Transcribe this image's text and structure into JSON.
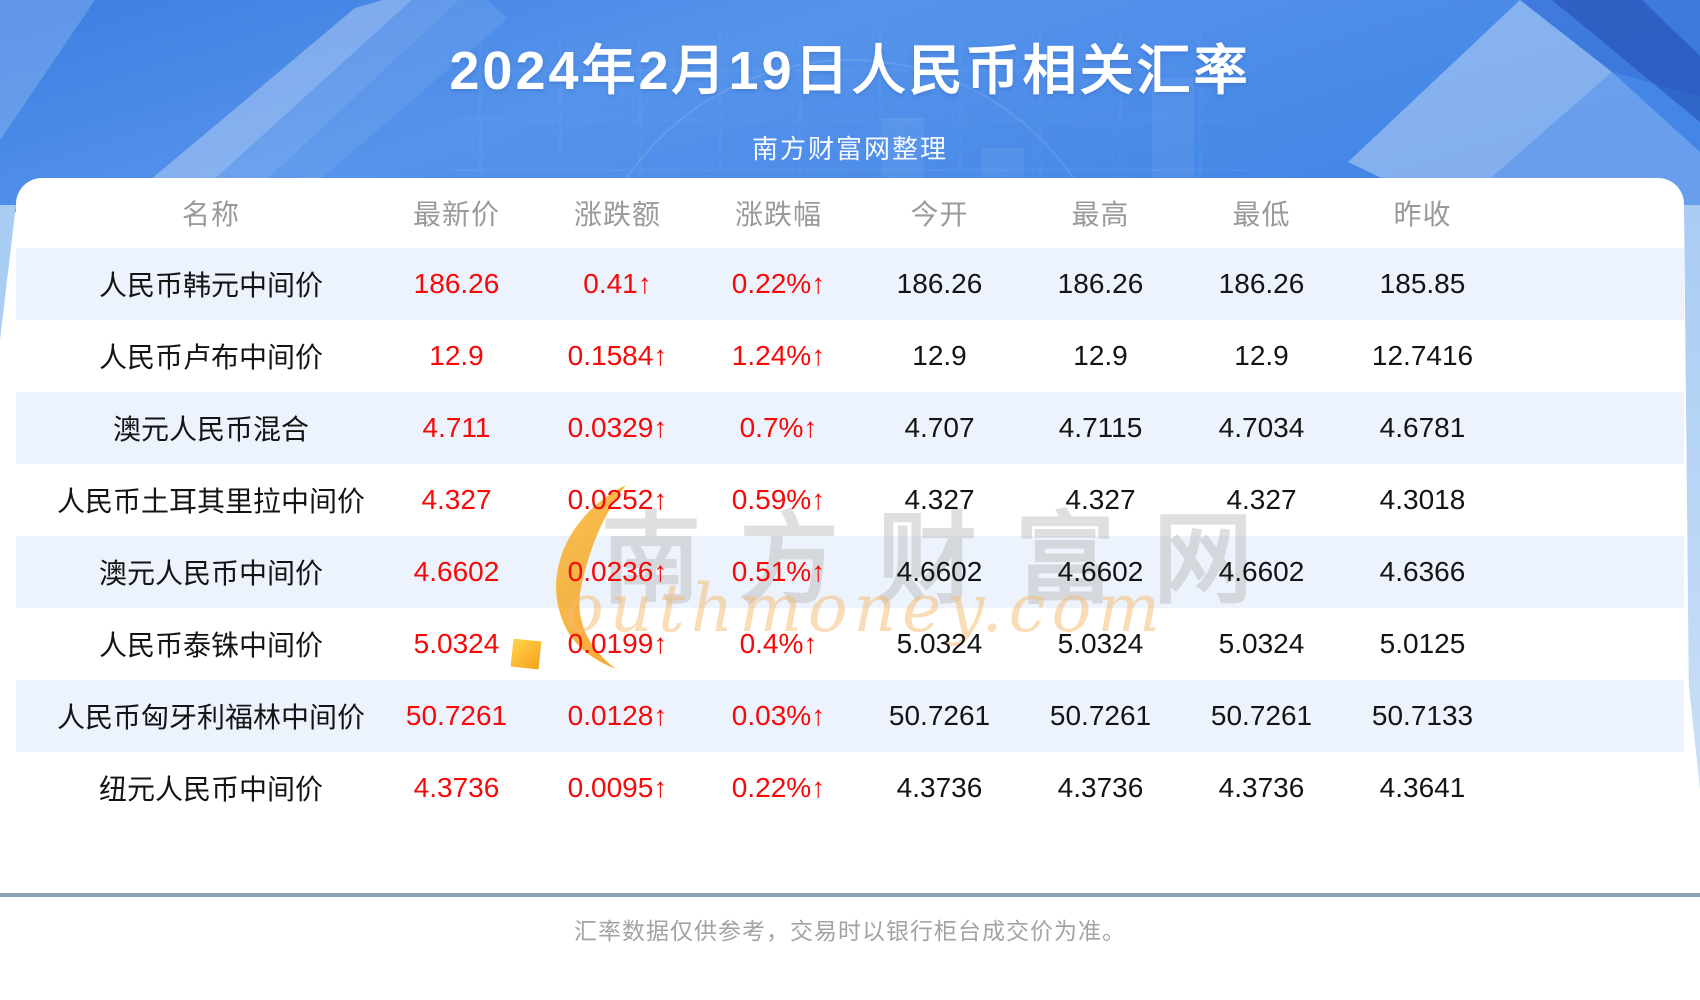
{
  "header": {
    "title": "2024年2月19日人民币相关汇率",
    "subtitle": "南方财富网整理"
  },
  "table": {
    "columns": [
      "名称",
      "最新价",
      "涨跌额",
      "涨跌幅",
      "今开",
      "最高",
      "最低",
      "昨收"
    ],
    "rows": [
      {
        "name": "人民币韩元中间价",
        "latest": "186.26",
        "change": "0.41↑",
        "change_pct": "0.22%↑",
        "open": "186.26",
        "high": "186.26",
        "low": "186.26",
        "prev_close": "185.85"
      },
      {
        "name": "人民币卢布中间价",
        "latest": "12.9",
        "change": "0.1584↑",
        "change_pct": "1.24%↑",
        "open": "12.9",
        "high": "12.9",
        "low": "12.9",
        "prev_close": "12.7416"
      },
      {
        "name": "澳元人民币混合",
        "latest": "4.711",
        "change": "0.0329↑",
        "change_pct": "0.7%↑",
        "open": "4.707",
        "high": "4.7115",
        "low": "4.7034",
        "prev_close": "4.6781"
      },
      {
        "name": "人民币土耳其里拉中间价",
        "latest": "4.327",
        "change": "0.0252↑",
        "change_pct": "0.59%↑",
        "open": "4.327",
        "high": "4.327",
        "low": "4.327",
        "prev_close": "4.3018"
      },
      {
        "name": "澳元人民币中间价",
        "latest": "4.6602",
        "change": "0.0236↑",
        "change_pct": "0.51%↑",
        "open": "4.6602",
        "high": "4.6602",
        "low": "4.6602",
        "prev_close": "4.6366"
      },
      {
        "name": "人民币泰铢中间价",
        "latest": "5.0324",
        "change": "0.0199↑",
        "change_pct": "0.4%↑",
        "open": "5.0324",
        "high": "5.0324",
        "low": "5.0324",
        "prev_close": "5.0125"
      },
      {
        "name": "人民币匈牙利福林中间价",
        "latest": "50.7261",
        "change": "0.0128↑",
        "change_pct": "0.03%↑",
        "open": "50.7261",
        "high": "50.7261",
        "low": "50.7261",
        "prev_close": "50.7133"
      },
      {
        "name": "纽元人民币中间价",
        "latest": "4.3736",
        "change": "0.0095↑",
        "change_pct": "0.22%↑",
        "open": "4.3736",
        "high": "4.3736",
        "low": "4.3736",
        "prev_close": "4.3641"
      }
    ]
  },
  "watermark": {
    "cn": "南方财富网",
    "en": "outhmoney.com"
  },
  "footer": {
    "note": "汇率数据仅供参考，交易时以银行柜台成交价为准。"
  },
  "colors": {
    "up_red": "#f60909",
    "banner_blue": "#4b8fe8",
    "row_alt_blue": "#edf3fc",
    "divider_gray_blue": "#8ba2b6",
    "header_text_gray": "#9a9a9a",
    "watermark_orange": "#f5a623"
  },
  "chart_data": {
    "type": "table",
    "title": "2024年2月19日人民币相关汇率",
    "subtitle": "南方财富网整理",
    "columns": [
      "名称",
      "最新价",
      "涨跌额",
      "涨跌幅",
      "今开",
      "最高",
      "最低",
      "昨收"
    ],
    "rows": [
      [
        "人民币韩元中间价",
        186.26,
        0.41,
        "0.22%",
        186.26,
        186.26,
        186.26,
        185.85
      ],
      [
        "人民币卢布中间价",
        12.9,
        0.1584,
        "1.24%",
        12.9,
        12.9,
        12.9,
        12.7416
      ],
      [
        "澳元人民币混合",
        4.711,
        0.0329,
        "0.7%",
        4.707,
        4.7115,
        4.7034,
        4.6781
      ],
      [
        "人民币土耳其里拉中间价",
        4.327,
        0.0252,
        "0.59%",
        4.327,
        4.327,
        4.327,
        4.3018
      ],
      [
        "澳元人民币中间价",
        4.6602,
        0.0236,
        "0.51%",
        4.6602,
        4.6602,
        4.6602,
        4.6366
      ],
      [
        "人民币泰铢中间价",
        5.0324,
        0.0199,
        "0.4%",
        5.0324,
        5.0324,
        5.0324,
        5.0125
      ],
      [
        "人民币匈牙利福林中间价",
        50.7261,
        0.0128,
        "0.03%",
        50.7261,
        50.7261,
        50.7261,
        50.7133
      ],
      [
        "纽元人民币中间价",
        4.3736,
        0.0095,
        "0.22%",
        4.3736,
        4.3736,
        4.3736,
        4.3641
      ]
    ],
    "direction_all_rows": "up",
    "notes": "汇率数据仅供参考，交易时以银行柜台成交价为准。"
  }
}
